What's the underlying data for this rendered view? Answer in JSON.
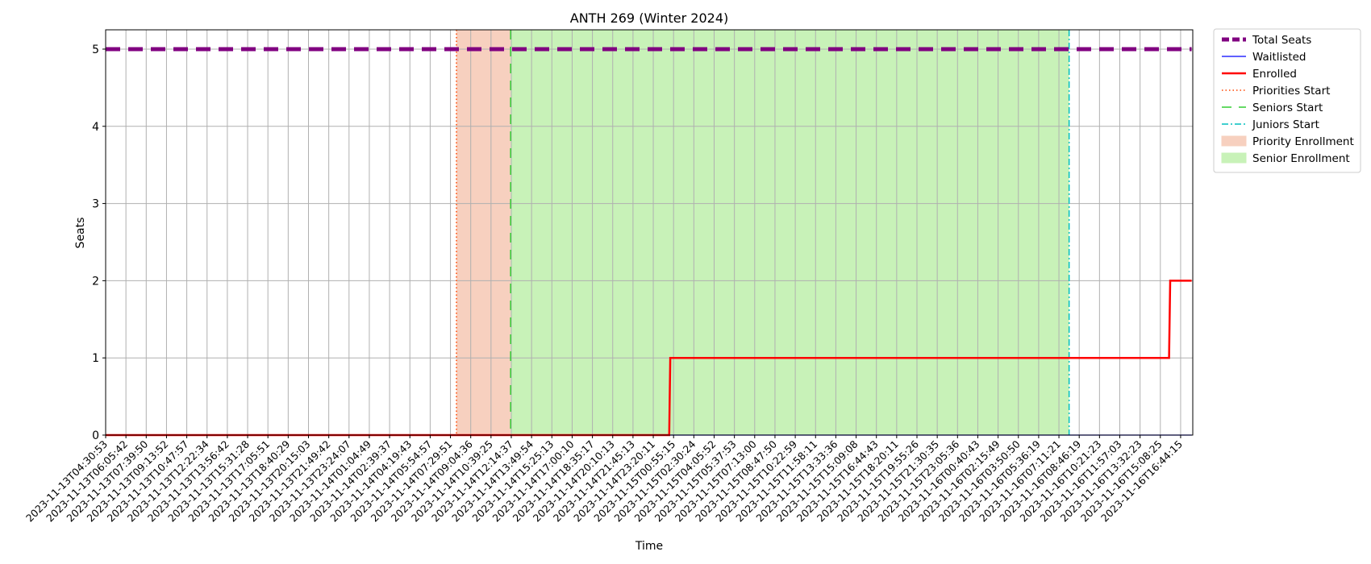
{
  "chart_data": {
    "type": "line",
    "title": "ANTH 269 (Winter 2024)",
    "xlabel": "Time",
    "ylabel": "Seats",
    "ylim": [
      0,
      5.25
    ],
    "yticks": [
      0,
      1,
      2,
      3,
      4,
      5
    ],
    "grid": true,
    "legend_placement": "outside-top-right",
    "x_categories": [
      "2023-11-13T04:30:53",
      "2023-11-13T06:05:42",
      "2023-11-13T07:39:50",
      "2023-11-13T09:13:52",
      "2023-11-13T10:47:57",
      "2023-11-13T12:22:34",
      "2023-11-13T13:56:42",
      "2023-11-13T15:31:28",
      "2023-11-13T17:05:51",
      "2023-11-13T18:40:29",
      "2023-11-13T20:15:03",
      "2023-11-13T21:49:42",
      "2023-11-13T23:24:07",
      "2023-11-14T01:04:49",
      "2023-11-14T02:39:37",
      "2023-11-14T04:19:43",
      "2023-11-14T05:54:57",
      "2023-11-14T07:29:51",
      "2023-11-14T09:04:36",
      "2023-11-14T10:39:25",
      "2023-11-14T12:14:37",
      "2023-11-14T13:49:54",
      "2023-11-14T15:25:13",
      "2023-11-14T17:00:10",
      "2023-11-14T18:35:17",
      "2023-11-14T20:10:13",
      "2023-11-14T21:45:13",
      "2023-11-14T23:20:11",
      "2023-11-15T00:55:15",
      "2023-11-15T02:30:24",
      "2023-11-15T04:05:52",
      "2023-11-15T05:37:53",
      "2023-11-15T07:13:00",
      "2023-11-15T08:47:50",
      "2023-11-15T10:22:59",
      "2023-11-15T11:58:11",
      "2023-11-15T13:33:36",
      "2023-11-15T15:09:08",
      "2023-11-15T16:44:43",
      "2023-11-15T18:20:11",
      "2023-11-15T19:55:26",
      "2023-11-15T21:30:35",
      "2023-11-15T23:05:36",
      "2023-11-16T00:40:43",
      "2023-11-16T02:15:49",
      "2023-11-16T03:50:50",
      "2023-11-16T05:36:19",
      "2023-11-16T07:11:21",
      "2023-11-16T08:46:19",
      "2023-11-16T10:21:23",
      "2023-11-16T11:57:03",
      "2023-11-16T13:32:23",
      "2023-11-16T15:08:25",
      "2023-11-16T16:44:15"
    ],
    "series": [
      {
        "name": "Total Seats",
        "color": "#800080",
        "style": "dashed",
        "x": [
          "2023-11-13T04:30:53",
          "2023-11-16T17:36:00"
        ],
        "values": [
          5,
          5
        ]
      },
      {
        "name": "Waitlisted",
        "color": "#0000ff",
        "style": "solid",
        "x": [
          "2023-11-13T04:30:53",
          "2023-11-16T17:36:00"
        ],
        "values": [
          0,
          0
        ]
      },
      {
        "name": "Enrolled",
        "color": "#ff0000",
        "style": "solid-step",
        "x": [
          "2023-11-13T04:30:53",
          "2023-11-15T00:40:00",
          "2023-11-15T00:45:00",
          "2023-11-16T15:50:00",
          "2023-11-16T15:55:00",
          "2023-11-16T17:36:00"
        ],
        "values": [
          0,
          0,
          1,
          1,
          2,
          2
        ]
      }
    ],
    "vlines": [
      {
        "name": "Priorities Start",
        "color": "#ff4500",
        "style": "dotted",
        "x": "2023-11-14T08:00:00"
      },
      {
        "name": "Seniors Start",
        "color": "#32cd32",
        "style": "dashed",
        "x": "2023-11-14T12:14:37"
      },
      {
        "name": "Juniors Start",
        "color": "#00bfbf",
        "style": "dashdot",
        "x": "2023-11-16T08:00:00"
      }
    ],
    "spans": [
      {
        "name": "Priority Enrollment",
        "color": "#f7d0bf",
        "x_start": "2023-11-14T08:00:00",
        "x_end": "2023-11-14T12:14:37"
      },
      {
        "name": "Senior Enrollment",
        "color": "#c8f2b8",
        "x_start": "2023-11-14T12:14:37",
        "x_end": "2023-11-16T08:00:00"
      }
    ],
    "legend": [
      {
        "label": "Total Seats",
        "kind": "line",
        "color": "#800080",
        "style": "dashed-thick"
      },
      {
        "label": "Waitlisted",
        "kind": "line",
        "color": "#0000ff",
        "style": "solid-thin"
      },
      {
        "label": "Enrolled",
        "kind": "line",
        "color": "#ff0000",
        "style": "solid"
      },
      {
        "label": "Priorities Start",
        "kind": "line",
        "color": "#ff4500",
        "style": "dotted"
      },
      {
        "label": "Seniors Start",
        "kind": "line",
        "color": "#32cd32",
        "style": "dashed"
      },
      {
        "label": "Juniors Start",
        "kind": "line",
        "color": "#00bfbf",
        "style": "dashdot"
      },
      {
        "label": "Priority Enrollment",
        "kind": "patch",
        "color": "#f7d0bf"
      },
      {
        "label": "Senior Enrollment",
        "kind": "patch",
        "color": "#c8f2b8"
      }
    ]
  }
}
